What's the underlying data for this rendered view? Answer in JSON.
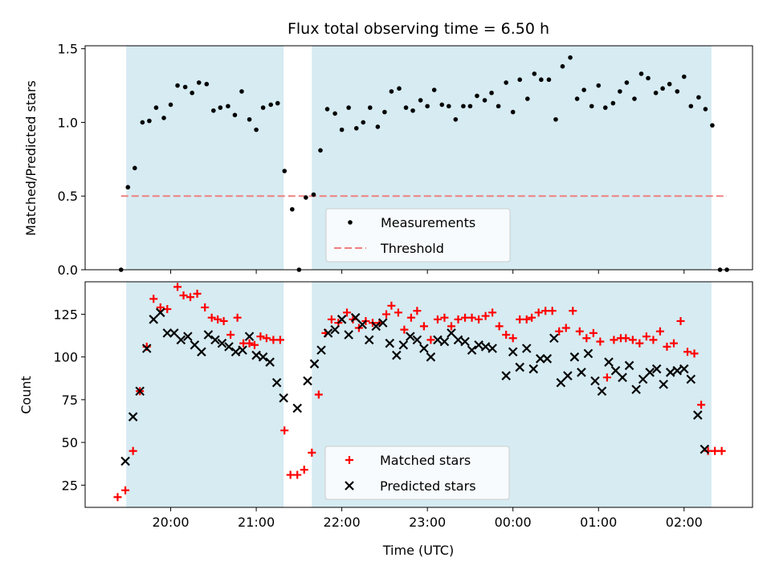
{
  "chart_data": [
    {
      "type": "scatter",
      "title": "Flux total observing time = 6.50 h",
      "ylabel": "Matched/Predicted stars",
      "xlabel": "",
      "ylim": [
        0,
        1.52
      ],
      "yticks": [
        "0.0",
        "0.5",
        "1.0",
        "1.5"
      ],
      "ytick_values": [
        0,
        0.5,
        1.0,
        1.5
      ],
      "xticks_hours": [
        20,
        21,
        22,
        23,
        24,
        25,
        26
      ],
      "shaded_intervals": [
        [
          19.48,
          21.32
        ],
        [
          21.65,
          26.32
        ]
      ],
      "legend": [
        "Measurements",
        "Threshold"
      ],
      "legend_placement": "lower center",
      "threshold": {
        "name": "Threshold",
        "value": 0.5,
        "x_range": [
          19.42,
          26.5
        ],
        "color": "#f08080"
      },
      "series": [
        {
          "name": "Measurements",
          "color": "#000000",
          "marker": "dot",
          "points": [
            [
              19.42,
              0.0
            ],
            [
              19.5,
              0.56
            ],
            [
              19.58,
              0.69
            ],
            [
              19.67,
              1.0
            ],
            [
              19.75,
              1.01
            ],
            [
              19.83,
              1.1
            ],
            [
              19.92,
              1.03
            ],
            [
              20.0,
              1.12
            ],
            [
              20.08,
              1.25
            ],
            [
              20.17,
              1.24
            ],
            [
              20.25,
              1.2
            ],
            [
              20.33,
              1.27
            ],
            [
              20.42,
              1.26
            ],
            [
              20.5,
              1.08
            ],
            [
              20.58,
              1.1
            ],
            [
              20.67,
              1.11
            ],
            [
              20.75,
              1.05
            ],
            [
              20.83,
              1.21
            ],
            [
              20.92,
              1.02
            ],
            [
              21.0,
              0.95
            ],
            [
              21.08,
              1.1
            ],
            [
              21.17,
              1.12
            ],
            [
              21.25,
              1.13
            ],
            [
              21.33,
              0.67
            ],
            [
              21.42,
              0.41
            ],
            [
              21.5,
              0.0
            ],
            [
              21.58,
              0.49
            ],
            [
              21.67,
              0.51
            ],
            [
              21.75,
              0.81
            ],
            [
              21.83,
              1.09
            ],
            [
              21.92,
              1.06
            ],
            [
              22.0,
              0.95
            ],
            [
              22.08,
              1.1
            ],
            [
              22.17,
              0.96
            ],
            [
              22.25,
              1.0
            ],
            [
              22.33,
              1.1
            ],
            [
              22.42,
              0.97
            ],
            [
              22.5,
              1.07
            ],
            [
              22.58,
              1.21
            ],
            [
              22.67,
              1.23
            ],
            [
              22.75,
              1.1
            ],
            [
              22.83,
              1.08
            ],
            [
              22.92,
              1.15
            ],
            [
              23.0,
              1.11
            ],
            [
              23.08,
              1.22
            ],
            [
              23.17,
              1.12
            ],
            [
              23.25,
              1.11
            ],
            [
              23.33,
              1.02
            ],
            [
              23.42,
              1.11
            ],
            [
              23.5,
              1.11
            ],
            [
              23.58,
              1.18
            ],
            [
              23.67,
              1.15
            ],
            [
              23.75,
              1.2
            ],
            [
              23.83,
              1.11
            ],
            [
              23.92,
              1.27
            ],
            [
              24.0,
              1.07
            ],
            [
              24.08,
              1.29
            ],
            [
              24.17,
              1.16
            ],
            [
              24.25,
              1.33
            ],
            [
              24.33,
              1.29
            ],
            [
              24.42,
              1.29
            ],
            [
              24.5,
              1.02
            ],
            [
              24.58,
              1.38
            ],
            [
              24.67,
              1.44
            ],
            [
              24.75,
              1.16
            ],
            [
              24.83,
              1.22
            ],
            [
              24.92,
              1.11
            ],
            [
              25.0,
              1.25
            ],
            [
              25.08,
              1.1
            ],
            [
              25.17,
              1.13
            ],
            [
              25.25,
              1.21
            ],
            [
              25.33,
              1.27
            ],
            [
              25.42,
              1.16
            ],
            [
              25.5,
              1.33
            ],
            [
              25.58,
              1.3
            ],
            [
              25.67,
              1.2
            ],
            [
              25.75,
              1.23
            ],
            [
              25.83,
              1.26
            ],
            [
              25.92,
              1.21
            ],
            [
              26.0,
              1.31
            ],
            [
              26.08,
              1.11
            ],
            [
              26.17,
              1.17
            ],
            [
              26.25,
              1.09
            ],
            [
              26.33,
              0.98
            ],
            [
              26.42,
              0.0
            ],
            [
              26.5,
              0.0
            ]
          ]
        }
      ]
    },
    {
      "type": "scatter",
      "title": "",
      "ylabel": "Count",
      "xlabel": "Time (UTC)",
      "ylim": [
        12,
        144
      ],
      "yticks": [
        "25",
        "50",
        "75",
        "100",
        "125"
      ],
      "ytick_values": [
        25,
        50,
        75,
        100,
        125
      ],
      "xticks_hours": [
        20,
        21,
        22,
        23,
        24,
        25,
        26
      ],
      "xtick_labels": [
        "20:00",
        "21:00",
        "22:00",
        "23:00",
        "00:00",
        "01:00",
        "02:00"
      ],
      "shaded_intervals": [
        [
          19.48,
          21.32
        ],
        [
          21.65,
          26.32
        ]
      ],
      "legend": [
        "Matched stars",
        "Predicted stars"
      ],
      "legend_placement": "lower center",
      "series": [
        {
          "name": "Matched stars",
          "color": "#ff0000",
          "marker": "plus",
          "points": [
            [
              19.38,
              18
            ],
            [
              19.47,
              22
            ],
            [
              19.56,
              45
            ],
            [
              19.64,
              80
            ],
            [
              19.72,
              106
            ],
            [
              19.8,
              134
            ],
            [
              19.88,
              129
            ],
            [
              19.96,
              128
            ],
            [
              20.08,
              141
            ],
            [
              20.15,
              136
            ],
            [
              20.23,
              135
            ],
            [
              20.31,
              137
            ],
            [
              20.4,
              129
            ],
            [
              20.48,
              123
            ],
            [
              20.55,
              122
            ],
            [
              20.62,
              121
            ],
            [
              20.7,
              113
            ],
            [
              20.78,
              123
            ],
            [
              20.85,
              108
            ],
            [
              20.92,
              108
            ],
            [
              20.98,
              107
            ],
            [
              21.05,
              112
            ],
            [
              21.12,
              111
            ],
            [
              21.2,
              110
            ],
            [
              21.28,
              110
            ],
            [
              21.33,
              57
            ],
            [
              21.4,
              31
            ],
            [
              21.48,
              31
            ],
            [
              21.56,
              34
            ],
            [
              21.65,
              44
            ],
            [
              21.73,
              78
            ],
            [
              21.81,
              114
            ],
            [
              21.88,
              122
            ],
            [
              21.96,
              120
            ],
            [
              22.06,
              126
            ],
            [
              22.13,
              122
            ],
            [
              22.2,
              117
            ],
            [
              22.28,
              121
            ],
            [
              22.36,
              120
            ],
            [
              22.44,
              120
            ],
            [
              22.52,
              125
            ],
            [
              22.58,
              130
            ],
            [
              22.66,
              126
            ],
            [
              22.73,
              116
            ],
            [
              22.81,
              123
            ],
            [
              22.88,
              127
            ],
            [
              22.96,
              118
            ],
            [
              23.04,
              110
            ],
            [
              23.12,
              122
            ],
            [
              23.2,
              123
            ],
            [
              23.28,
              118
            ],
            [
              23.36,
              122
            ],
            [
              23.44,
              123
            ],
            [
              23.52,
              123
            ],
            [
              23.6,
              122
            ],
            [
              23.68,
              124
            ],
            [
              23.76,
              126
            ],
            [
              23.84,
              118
            ],
            [
              23.92,
              113
            ],
            [
              24.0,
              111
            ],
            [
              24.08,
              122
            ],
            [
              24.16,
              122
            ],
            [
              24.22,
              123
            ],
            [
              24.3,
              126
            ],
            [
              24.38,
              127
            ],
            [
              24.46,
              127
            ],
            [
              24.54,
              115
            ],
            [
              24.62,
              117
            ],
            [
              24.7,
              127
            ],
            [
              24.78,
              115
            ],
            [
              24.86,
              111
            ],
            [
              24.94,
              114
            ],
            [
              25.02,
              109
            ],
            [
              25.1,
              88
            ],
            [
              25.18,
              110
            ],
            [
              25.26,
              111
            ],
            [
              25.32,
              111
            ],
            [
              25.4,
              110
            ],
            [
              25.48,
              108
            ],
            [
              25.56,
              112
            ],
            [
              25.64,
              110
            ],
            [
              25.72,
              115
            ],
            [
              25.8,
              106
            ],
            [
              25.88,
              108
            ],
            [
              25.96,
              121
            ],
            [
              26.04,
              103
            ],
            [
              26.12,
              102
            ],
            [
              26.2,
              72
            ],
            [
              26.28,
              45
            ],
            [
              26.36,
              45
            ],
            [
              26.44,
              45
            ]
          ]
        },
        {
          "name": "Predicted stars",
          "color": "#000000",
          "marker": "x",
          "points": [
            [
              19.47,
              39
            ],
            [
              19.56,
              65
            ],
            [
              19.64,
              80
            ],
            [
              19.72,
              105
            ],
            [
              19.8,
              122
            ],
            [
              19.88,
              126
            ],
            [
              19.96,
              114
            ],
            [
              20.04,
              114
            ],
            [
              20.12,
              110
            ],
            [
              20.2,
              112
            ],
            [
              20.28,
              107
            ],
            [
              20.36,
              103
            ],
            [
              20.44,
              113
            ],
            [
              20.52,
              110
            ],
            [
              20.6,
              108
            ],
            [
              20.68,
              106
            ],
            [
              20.76,
              103
            ],
            [
              20.84,
              104
            ],
            [
              20.92,
              112
            ],
            [
              21.0,
              101
            ],
            [
              21.08,
              100
            ],
            [
              21.16,
              97
            ],
            [
              21.24,
              85
            ],
            [
              21.32,
              76
            ],
            [
              21.48,
              70
            ],
            [
              21.6,
              86
            ],
            [
              21.68,
              96
            ],
            [
              21.76,
              104
            ],
            [
              21.84,
              114
            ],
            [
              21.92,
              116
            ],
            [
              22.0,
              122
            ],
            [
              22.08,
              113
            ],
            [
              22.16,
              123
            ],
            [
              22.24,
              119
            ],
            [
              22.32,
              110
            ],
            [
              22.4,
              118
            ],
            [
              22.48,
              120
            ],
            [
              22.56,
              108
            ],
            [
              22.64,
              101
            ],
            [
              22.72,
              107
            ],
            [
              22.8,
              112
            ],
            [
              22.88,
              110
            ],
            [
              22.96,
              105
            ],
            [
              23.04,
              100
            ],
            [
              23.12,
              110
            ],
            [
              23.2,
              109
            ],
            [
              23.28,
              114
            ],
            [
              23.36,
              110
            ],
            [
              23.44,
              109
            ],
            [
              23.52,
              104
            ],
            [
              23.6,
              107
            ],
            [
              23.68,
              106
            ],
            [
              23.76,
              105
            ],
            [
              23.92,
              89
            ],
            [
              24.0,
              103
            ],
            [
              24.08,
              94
            ],
            [
              24.16,
              105
            ],
            [
              24.24,
              93
            ],
            [
              24.32,
              99
            ],
            [
              24.4,
              99
            ],
            [
              24.48,
              111
            ],
            [
              24.56,
              85
            ],
            [
              24.64,
              89
            ],
            [
              24.72,
              100
            ],
            [
              24.8,
              91
            ],
            [
              24.88,
              102
            ],
            [
              24.96,
              86
            ],
            [
              25.04,
              80
            ],
            [
              25.12,
              97
            ],
            [
              25.2,
              92
            ],
            [
              25.28,
              88
            ],
            [
              25.36,
              95
            ],
            [
              25.44,
              81
            ],
            [
              25.52,
              87
            ],
            [
              25.6,
              91
            ],
            [
              25.68,
              93
            ],
            [
              25.76,
              84
            ],
            [
              25.84,
              91
            ],
            [
              25.92,
              92
            ],
            [
              26.0,
              93
            ],
            [
              26.08,
              87
            ],
            [
              26.16,
              66
            ],
            [
              26.24,
              46
            ]
          ]
        }
      ]
    }
  ]
}
